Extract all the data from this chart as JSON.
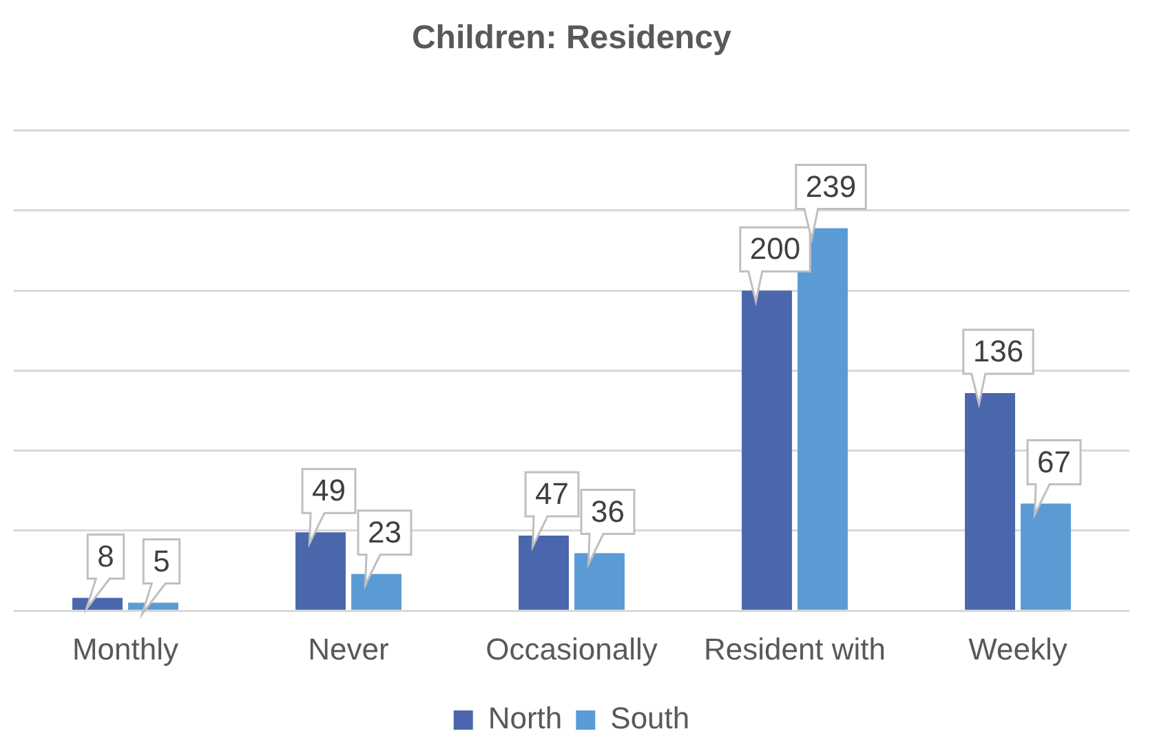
{
  "chart_data": {
    "type": "bar",
    "title": "Children: Residency",
    "categories": [
      "Monthly",
      "Never",
      "Occasionally",
      "Resident with",
      "Weekly"
    ],
    "series": [
      {
        "name": "North",
        "color": "#4a66ac",
        "values": [
          8,
          49,
          47,
          200,
          136
        ]
      },
      {
        "name": "South",
        "color": "#5b9bd5",
        "values": [
          5,
          23,
          36,
          239,
          67
        ]
      }
    ],
    "ylim": [
      0,
      300
    ],
    "yticks": [
      {
        "value": 0,
        "label": null
      },
      {
        "value": 50,
        "label": null
      },
      {
        "value": 100,
        "label": null
      },
      {
        "value": 150,
        "label": null
      },
      {
        "value": 200,
        "label": null
      },
      {
        "value": 250,
        "label": null
      },
      {
        "value": 300,
        "label": null
      }
    ],
    "grid": "y",
    "tick_labels": "x",
    "legend": "bottom",
    "data_labels": true
  }
}
